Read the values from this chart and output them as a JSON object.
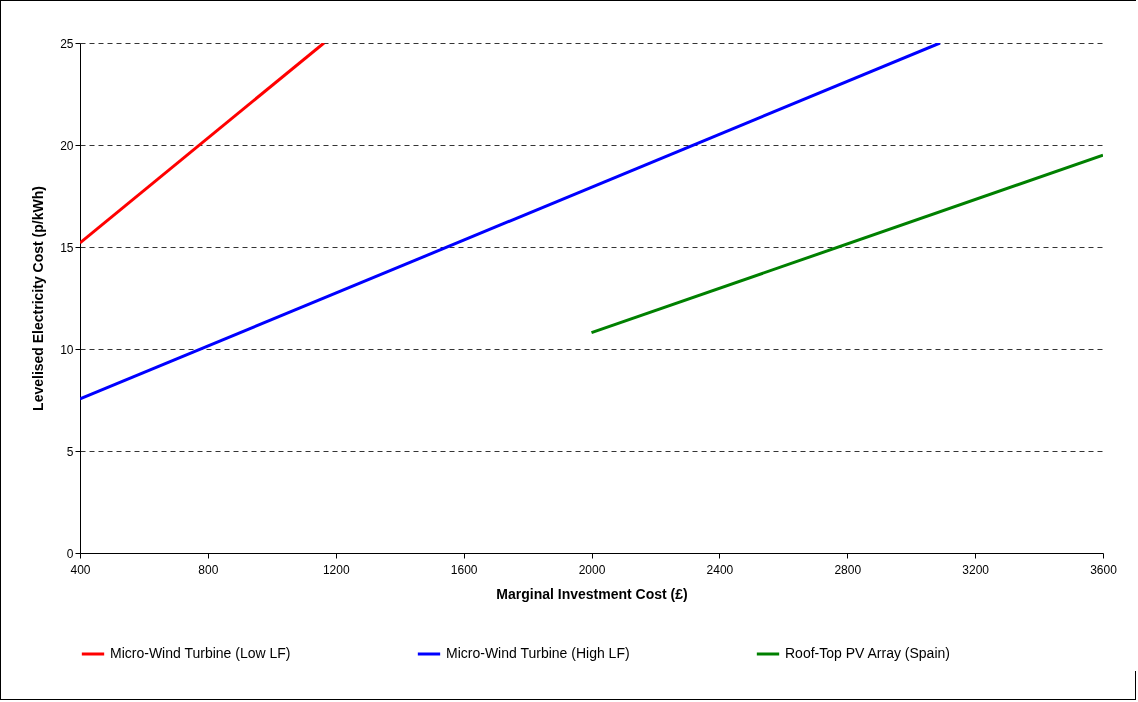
{
  "chart_data": {
    "type": "line",
    "xlabel": "Marginal Investment Cost (£)",
    "ylabel": "Levelised Electricity Cost (p/kWh)",
    "xlim": [
      400,
      3600
    ],
    "xticks": [
      400,
      800,
      1200,
      1600,
      2000,
      2400,
      2800,
      3200,
      3600
    ],
    "ylim": [
      0,
      25
    ],
    "yticks": [
      0,
      5,
      10,
      15,
      20,
      25
    ],
    "grid": "y",
    "legend": "bottom",
    "line_style": "solid",
    "marker": "none",
    "series": [
      {
        "name": "Micro-Wind Turbine (Low LF)",
        "color": "#ff0000",
        "x": [
          400,
          1163
        ],
        "values": [
          15.2,
          25
        ]
      },
      {
        "name": "Micro-Wind Turbine (High LF)",
        "color": "#0000ff",
        "x": [
          400,
          3090
        ],
        "values": [
          7.55,
          25
        ]
      },
      {
        "name": "Roof-Top PV Array (Spain)",
        "color": "#008000",
        "x": [
          2000,
          3600
        ],
        "values": [
          10.8,
          19.5
        ]
      }
    ]
  }
}
